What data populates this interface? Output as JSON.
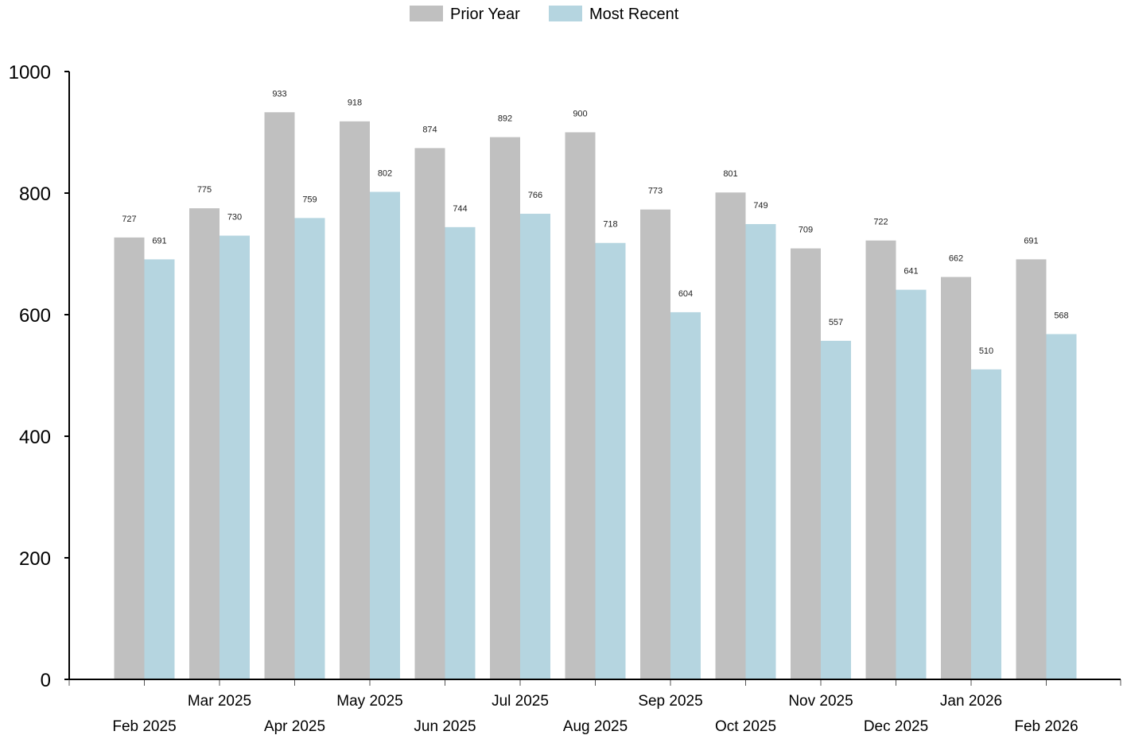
{
  "chart_data": {
    "type": "bar",
    "categories": [
      "Feb 2025",
      "Mar 2025",
      "Apr 2025",
      "May 2025",
      "Jun 2025",
      "Jul 2025",
      "Aug 2025",
      "Sep 2025",
      "Oct 2025",
      "Nov 2025",
      "Dec 2025",
      "Jan 2026",
      "Feb 2026"
    ],
    "series": [
      {
        "name": "Prior Year",
        "color": "#c0c0c0",
        "values": [
          727,
          775,
          933,
          918,
          874,
          892,
          900,
          773,
          801,
          709,
          722,
          662,
          691
        ]
      },
      {
        "name": "Most Recent",
        "color": "#b5d5e0",
        "values": [
          691,
          730,
          759,
          802,
          744,
          766,
          718,
          604,
          749,
          557,
          641,
          510,
          568
        ]
      }
    ],
    "title": "",
    "xlabel": "",
    "ylabel": "",
    "ylim": [
      0,
      1000
    ],
    "yticks": [
      0,
      200,
      400,
      600,
      800,
      1000
    ],
    "grid": false,
    "legend_position": "top-center"
  }
}
